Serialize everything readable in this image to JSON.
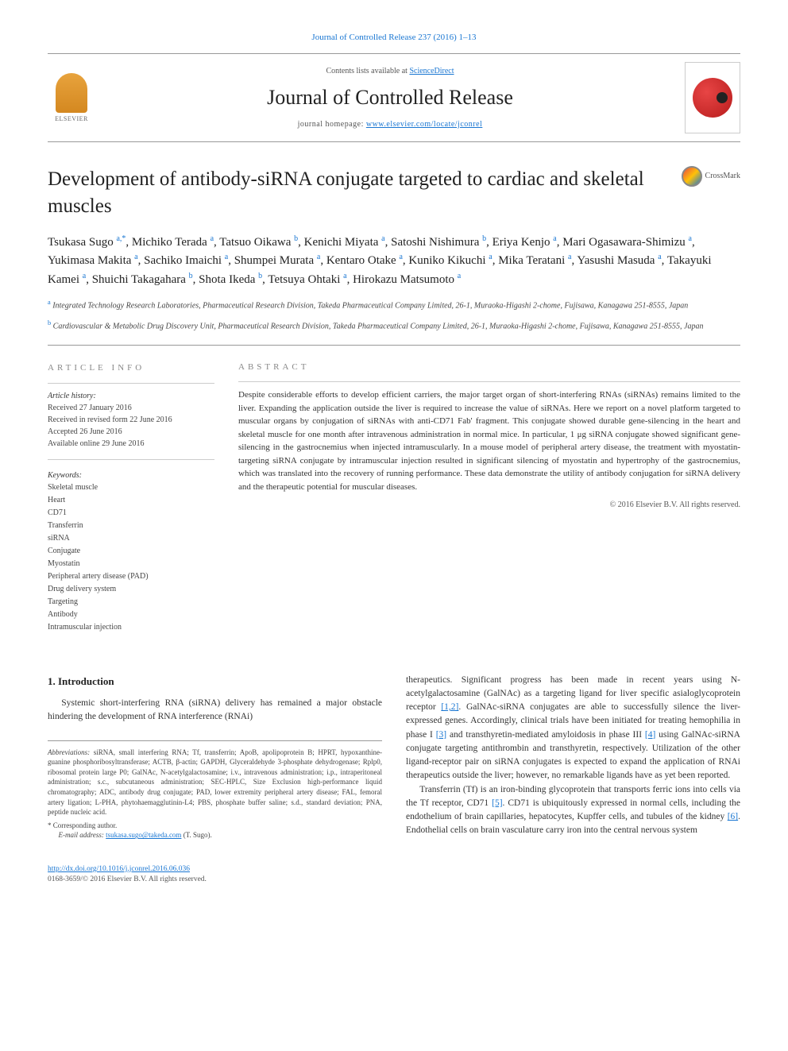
{
  "top_link": "Journal of Controlled Release 237 (2016) 1–13",
  "header": {
    "contents_prefix": "Contents lists available at ",
    "contents_link": "ScienceDirect",
    "journal_name": "Journal of Controlled Release",
    "homepage_prefix": "journal homepage: ",
    "homepage_url": "www.elsevier.com/locate/jconrel",
    "publisher_label": "ELSEVIER"
  },
  "crossmark_label": "CrossMark",
  "title": "Development of antibody-siRNA conjugate targeted to cardiac and skeletal muscles",
  "authors_html": "Tsukasa Sugo <sup>a,*</sup>, Michiko Terada <sup>a</sup>, Tatsuo Oikawa <sup>b</sup>, Kenichi Miyata <sup>a</sup>, Satoshi Nishimura <sup>b</sup>, Eriya Kenjo <sup>a</sup>, Mari Ogasawara-Shimizu <sup>a</sup>, Yukimasa Makita <sup>a</sup>, Sachiko Imaichi <sup>a</sup>, Shumpei Murata <sup>a</sup>, Kentaro Otake <sup>a</sup>, Kuniko Kikuchi <sup>a</sup>, Mika Teratani <sup>a</sup>, Yasushi Masuda <sup>a</sup>, Takayuki Kamei <sup>a</sup>, Shuichi Takagahara <sup>b</sup>, Shota Ikeda <sup>b</sup>, Tetsuya Ohtaki <sup>a</sup>, Hirokazu Matsumoto <sup>a</sup>",
  "affiliations": [
    {
      "sup": "a",
      "text": "Integrated Technology Research Laboratories, Pharmaceutical Research Division, Takeda Pharmaceutical Company Limited, 26-1, Muraoka-Higashi 2-chome, Fujisawa, Kanagawa 251-8555, Japan"
    },
    {
      "sup": "b",
      "text": "Cardiovascular & Metabolic Drug Discovery Unit, Pharmaceutical Research Division, Takeda Pharmaceutical Company Limited, 26-1, Muraoka-Higashi 2-chome, Fujisawa, Kanagawa 251-8555, Japan"
    }
  ],
  "article_info": {
    "heading": "ARTICLE INFO",
    "history_label": "Article history:",
    "history": [
      "Received 27 January 2016",
      "Received in revised form 22 June 2016",
      "Accepted 26 June 2016",
      "Available online 29 June 2016"
    ],
    "keywords_label": "Keywords:",
    "keywords": [
      "Skeletal muscle",
      "Heart",
      "CD71",
      "Transferrin",
      "siRNA",
      "Conjugate",
      "Myostatin",
      "Peripheral artery disease (PAD)",
      "Drug delivery system",
      "Targeting",
      "Antibody",
      "Intramuscular injection"
    ]
  },
  "abstract": {
    "heading": "ABSTRACT",
    "text": "Despite considerable efforts to develop efficient carriers, the major target organ of short-interfering RNAs (siRNAs) remains limited to the liver. Expanding the application outside the liver is required to increase the value of siRNAs. Here we report on a novel platform targeted to muscular organs by conjugation of siRNAs with anti-CD71 Fab' fragment. This conjugate showed durable gene-silencing in the heart and skeletal muscle for one month after intravenous administration in normal mice. In particular, 1 μg siRNA conjugate showed significant gene-silencing in the gastrocnemius when injected intramuscularly. In a mouse model of peripheral artery disease, the treatment with myostatin-targeting siRNA conjugate by intramuscular injection resulted in significant silencing of myostatin and hypertrophy of the gastrocnemius, which was translated into the recovery of running performance. These data demonstrate the utility of antibody conjugation for siRNA delivery and the therapeutic potential for muscular diseases.",
    "copyright": "© 2016 Elsevier B.V. All rights reserved."
  },
  "body": {
    "section_heading": "1. Introduction",
    "col1_p1": "Systemic short-interfering RNA (siRNA) delivery has remained a major obstacle hindering the development of RNA interference (RNAi)",
    "col2_p1_a": "therapeutics. Significant progress has been made in recent years using N-acetylgalactosamine (GalNAc) as a targeting ligand for liver specific asialoglycoprotein receptor ",
    "col2_ref1": "[1,2]",
    "col2_p1_b": ". GalNAc-siRNA conjugates are able to successfully silence the liver-expressed genes. Accordingly, clinical trials have been initiated for treating hemophilia in phase I ",
    "col2_ref2": "[3]",
    "col2_p1_c": " and transthyretin-mediated amyloidosis in phase III ",
    "col2_ref3": "[4]",
    "col2_p1_d": " using GalNAc-siRNA conjugate targeting antithrombin and transthyretin, respectively. Utilization of the other ligand-receptor pair on siRNA conjugates is expected to expand the application of RNAi therapeutics outside the liver; however, no remarkable ligands have as yet been reported.",
    "col2_p2_a": "Transferrin (Tf) is an iron-binding glycoprotein that transports ferric ions into cells via the Tf receptor, CD71 ",
    "col2_ref4": "[5]",
    "col2_p2_b": ". CD71 is ubiquitously expressed in normal cells, including the endothelium of brain capillaries, hepatocytes, Kupffer cells, and tubules of the kidney ",
    "col2_ref5": "[6]",
    "col2_p2_c": ". Endothelial cells on brain vasculature carry iron into the central nervous system"
  },
  "footnotes": {
    "abbr_label": "Abbreviations:",
    "abbr_text": " siRNA, small interfering RNA; Tf, transferrin; ApoB, apolipoprotein B; HPRT, hypoxanthine-guanine phosphoribosyltransferase; ACTB, β-actin; GAPDH, Glyceraldehyde 3-phosphate dehydrogenase; Rplp0, ribosomal protein large P0; GalNAc, N-acetylgalactosamine; i.v., intravenous administration; i.p., intraperitoneal administration; s.c., subcutaneous administration; SEC-HPLC, Size Exclusion high-performance liquid chromatography; ADC, antibody drug conjugate; PAD, lower extremity peripheral artery disease; FAL, femoral artery ligation; L-PHA, phytohaemagglutinin-L4; PBS, phosphate buffer saline; s.d., standard deviation; PNA, peptide nucleic acid.",
    "corr_label": "* Corresponding author.",
    "email_label": "E-mail address: ",
    "email": "tsukasa.sugo@takeda.com",
    "email_suffix": " (T. Sugo)."
  },
  "footer": {
    "doi": "http://dx.doi.org/10.1016/j.jconrel.2016.06.036",
    "issn_line": "0168-3659/© 2016 Elsevier B.V. All rights reserved."
  },
  "colors": {
    "link": "#1976d2",
    "text": "#333333",
    "muted": "#888888",
    "rule": "#999999"
  }
}
